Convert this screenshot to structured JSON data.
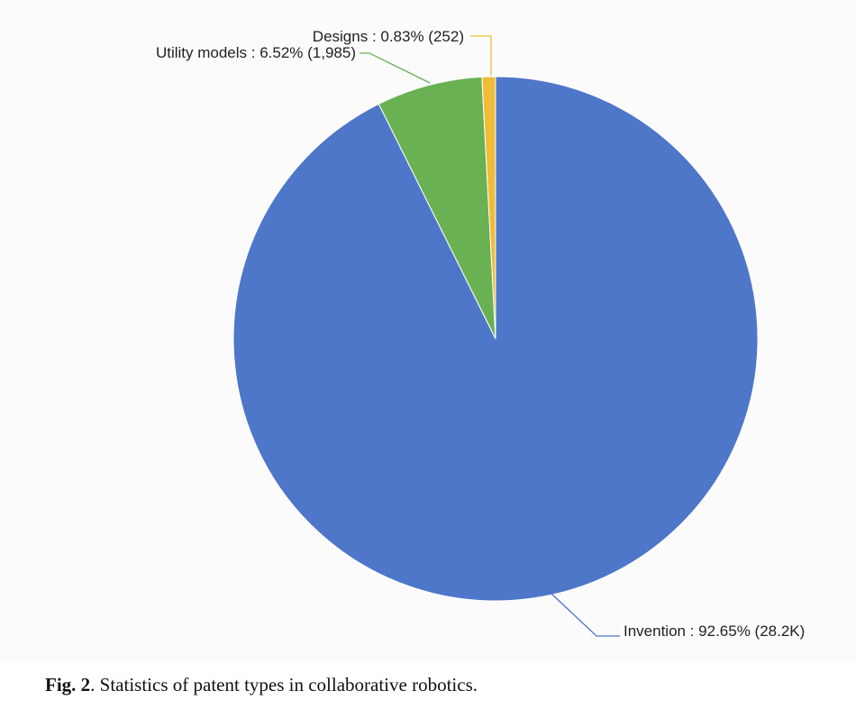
{
  "chart_data": {
    "type": "pie",
    "slices": [
      {
        "name": "Invention",
        "percent": 92.65,
        "count": "28.2K",
        "label": "Invention : 92.65% (28.2K)",
        "color": "#4e76c9"
      },
      {
        "name": "Utility models",
        "percent": 6.52,
        "count": "1,985",
        "label": "Utility models : 6.52% (1,985)",
        "color": "#6ab153"
      },
      {
        "name": "Designs",
        "percent": 0.83,
        "count": "252",
        "label": "Designs : 0.83% (252)",
        "color": "#f0bc38"
      }
    ],
    "start_angle": "top",
    "direction": "clockwise",
    "legend": "none"
  },
  "caption": {
    "label": "Fig. 2",
    "text": ".  Statistics of patent types in collaborative robotics."
  }
}
